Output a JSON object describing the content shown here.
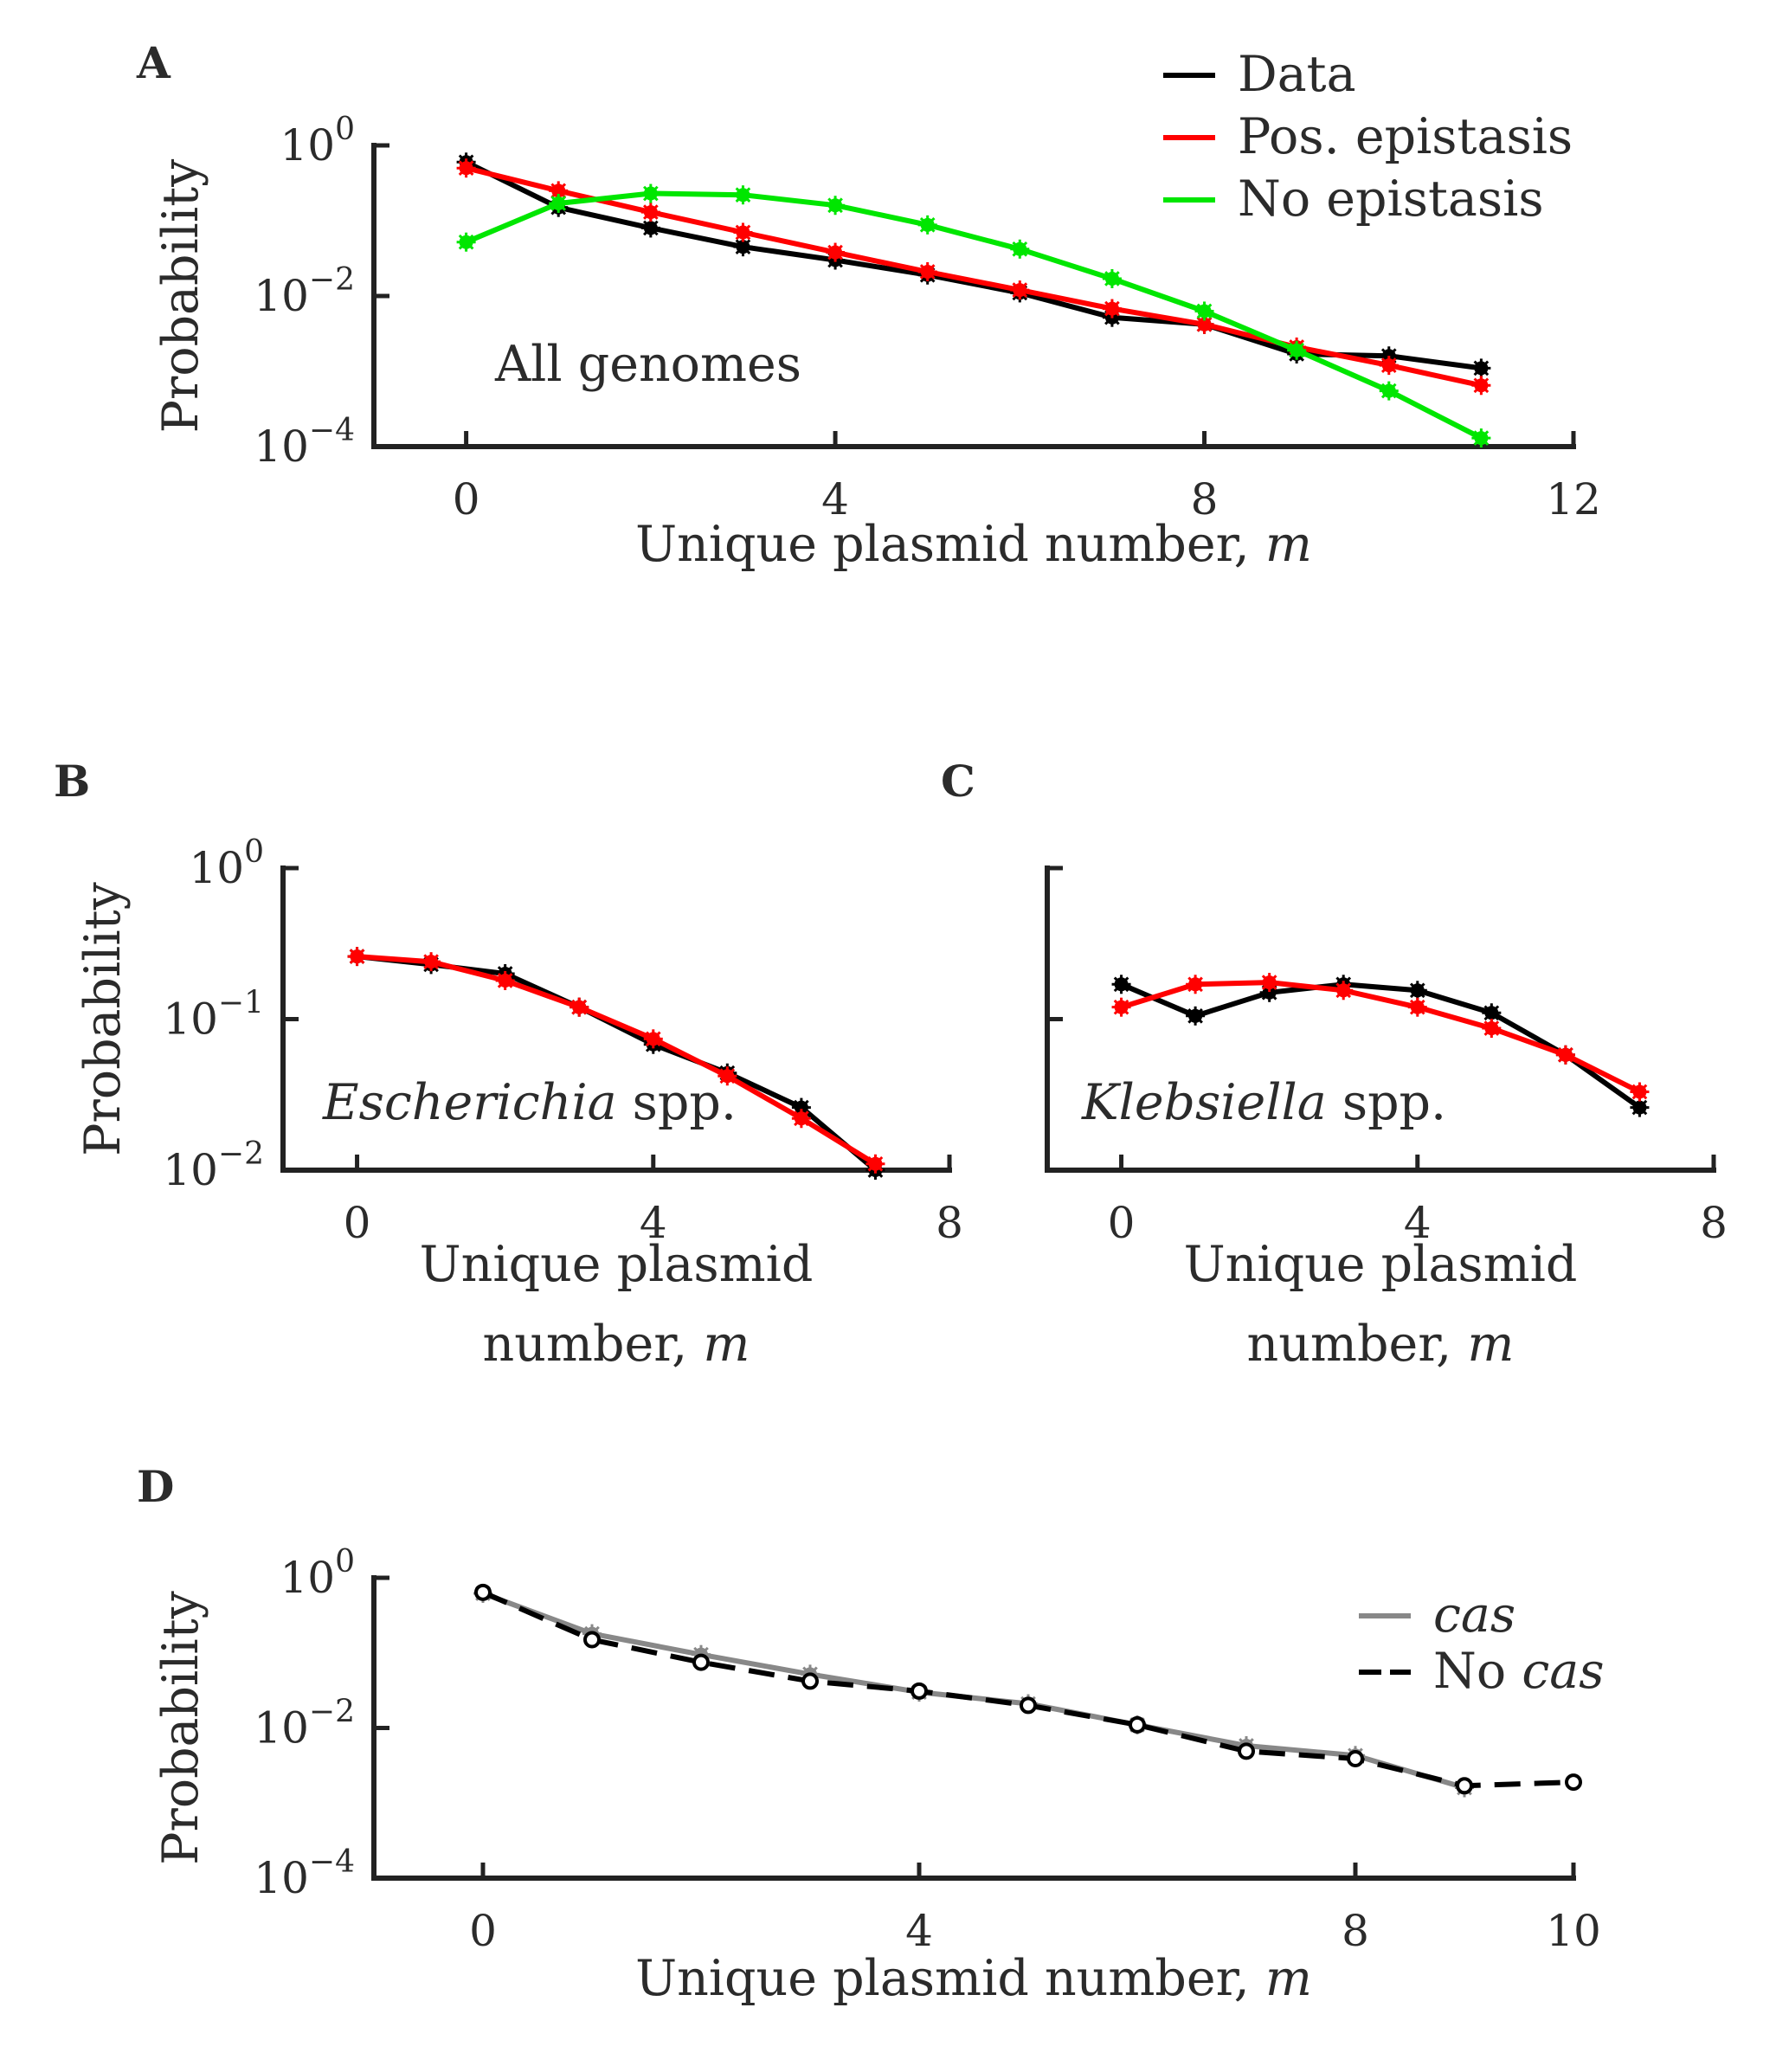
{
  "colors": {
    "data": "#000000",
    "pos_epistasis": "#ff0000",
    "no_epistasis": "#00e600",
    "cas": "#888888",
    "no_cas": "#000000",
    "axis": "#222222",
    "text": "#2b2b2b"
  },
  "chart_data": [
    {
      "panel": "A",
      "type": "line",
      "y_scale": "log10",
      "xlabel": "Unique plasmid number, m",
      "ylabel": "Probability",
      "xlim": [
        -1,
        12
      ],
      "ylim": [
        0.0001,
        1
      ],
      "xticks": [
        0,
        4,
        8,
        12
      ],
      "yticks": [
        {
          "value": 1,
          "base": "10",
          "exp": "0"
        },
        {
          "value": 0.01,
          "base": "10",
          "exp": "−2"
        },
        {
          "value": 0.0001,
          "base": "10",
          "exp": "−4"
        }
      ],
      "annotation": {
        "text": "All genomes",
        "italic": "",
        "rest": ""
      },
      "legend": {
        "placement": "top-right",
        "entries": [
          "Data",
          "Pos. epistasis",
          "No epistasis"
        ]
      },
      "series": [
        {
          "name": "Data",
          "color_key": "data",
          "dash": "solid",
          "x": [
            0,
            1,
            2,
            3,
            4,
            5,
            6,
            7,
            8,
            9,
            10,
            11
          ],
          "y": [
            0.6,
            0.15,
            0.08,
            0.045,
            0.03,
            0.019,
            0.011,
            0.0052,
            0.0042,
            0.0017,
            0.0016,
            0.0011
          ]
        },
        {
          "name": "Pos. epistasis",
          "color_key": "pos_epistasis",
          "dash": "solid",
          "x": [
            0,
            1,
            2,
            3,
            4,
            5,
            6,
            7,
            8,
            9,
            10,
            11
          ],
          "y": [
            0.5,
            0.25,
            0.13,
            0.07,
            0.038,
            0.021,
            0.012,
            0.0068,
            0.0042,
            0.0021,
            0.0012,
            0.00065
          ]
        },
        {
          "name": "No epistasis",
          "color_key": "no_epistasis",
          "dash": "solid",
          "x": [
            0,
            1,
            2,
            3,
            4,
            5,
            6,
            7,
            8,
            9,
            10,
            11
          ],
          "y": [
            0.052,
            0.17,
            0.23,
            0.22,
            0.16,
            0.088,
            0.042,
            0.017,
            0.0063,
            0.0019,
            0.00055,
            0.00013
          ]
        }
      ]
    },
    {
      "panel": "B",
      "type": "line",
      "y_scale": "log10",
      "xlabel_lines": [
        "Unique plasmid",
        "number, m"
      ],
      "ylabel": "Probability",
      "xlim": [
        -1,
        8
      ],
      "ylim": [
        0.01,
        1
      ],
      "xticks": [
        0,
        4,
        8
      ],
      "yticks": [
        {
          "value": 1,
          "base": "10",
          "exp": "0"
        },
        {
          "value": 0.1,
          "base": "10",
          "exp": "−1"
        },
        {
          "value": 0.01,
          "base": "10",
          "exp": "−2"
        }
      ],
      "annotation": {
        "text": "",
        "italic": "Escherichia",
        "rest": " spp."
      },
      "series": [
        {
          "name": "",
          "color_key": "data",
          "dash": "solid",
          "x": [
            0,
            1,
            2,
            3,
            4,
            5,
            6,
            7
          ],
          "y": [
            0.26,
            0.23,
            0.2,
            0.12,
            0.068,
            0.044,
            0.026,
            0.01
          ]
        },
        {
          "name": "",
          "color_key": "pos_epistasis",
          "dash": "solid",
          "x": [
            0,
            1,
            2,
            3,
            4,
            5,
            6,
            7
          ],
          "y": [
            0.26,
            0.24,
            0.18,
            0.12,
            0.074,
            0.042,
            0.022,
            0.011
          ]
        }
      ]
    },
    {
      "panel": "C",
      "type": "line",
      "y_scale": "log10",
      "xlabel_lines": [
        "Unique plasmid",
        "number, m"
      ],
      "ylabel": "",
      "xlim": [
        -1,
        8
      ],
      "ylim": [
        0.01,
        1
      ],
      "xticks": [
        0,
        4,
        8
      ],
      "yticks": [
        {
          "value": 1,
          "base": "",
          "exp": ""
        },
        {
          "value": 0.1,
          "base": "",
          "exp": ""
        },
        {
          "value": 0.01,
          "base": "",
          "exp": ""
        }
      ],
      "annotation": {
        "text": "",
        "italic": "Klebsiella",
        "rest": " spp."
      },
      "series": [
        {
          "name": "",
          "color_key": "data",
          "dash": "solid",
          "x": [
            0,
            1,
            2,
            3,
            4,
            5,
            6,
            7
          ],
          "y": [
            0.17,
            0.105,
            0.15,
            0.17,
            0.155,
            0.11,
            0.058,
            0.026
          ]
        },
        {
          "name": "",
          "color_key": "pos_epistasis",
          "dash": "solid",
          "x": [
            0,
            1,
            2,
            3,
            4,
            5,
            6,
            7
          ],
          "y": [
            0.12,
            0.17,
            0.175,
            0.155,
            0.12,
            0.087,
            0.058,
            0.033
          ]
        }
      ]
    },
    {
      "panel": "D",
      "type": "line",
      "y_scale": "log10",
      "xlabel": "Unique plasmid number, m",
      "ylabel": "Probability",
      "xlim": [
        -1,
        10
      ],
      "ylim": [
        0.0001,
        1
      ],
      "xticks": [
        0,
        4,
        8,
        10
      ],
      "yticks": [
        {
          "value": 1,
          "base": "10",
          "exp": "0"
        },
        {
          "value": 0.01,
          "base": "10",
          "exp": "−2"
        },
        {
          "value": 0.0001,
          "base": "10",
          "exp": "−4"
        }
      ],
      "annotation": {
        "text": "",
        "italic": "",
        "rest": ""
      },
      "legend": {
        "placement": "right",
        "entries": [
          "cas",
          "No cas"
        ]
      },
      "series": [
        {
          "name": "cas",
          "color_key": "cas",
          "dash": "solid",
          "x": [
            0,
            1,
            2,
            3,
            4,
            5,
            6,
            7,
            8,
            9
          ],
          "y": [
            0.62,
            0.18,
            0.095,
            0.052,
            0.03,
            0.021,
            0.011,
            0.0058,
            0.0043,
            0.0016
          ]
        },
        {
          "name": "No cas",
          "color_key": "no_cas",
          "dash": "dashed",
          "x": [
            0,
            1,
            2,
            3,
            4,
            5,
            6,
            7,
            8,
            9,
            10
          ],
          "y": [
            0.64,
            0.15,
            0.075,
            0.042,
            0.031,
            0.02,
            0.011,
            0.0049,
            0.0039,
            0.0017,
            0.0019
          ]
        }
      ]
    }
  ]
}
